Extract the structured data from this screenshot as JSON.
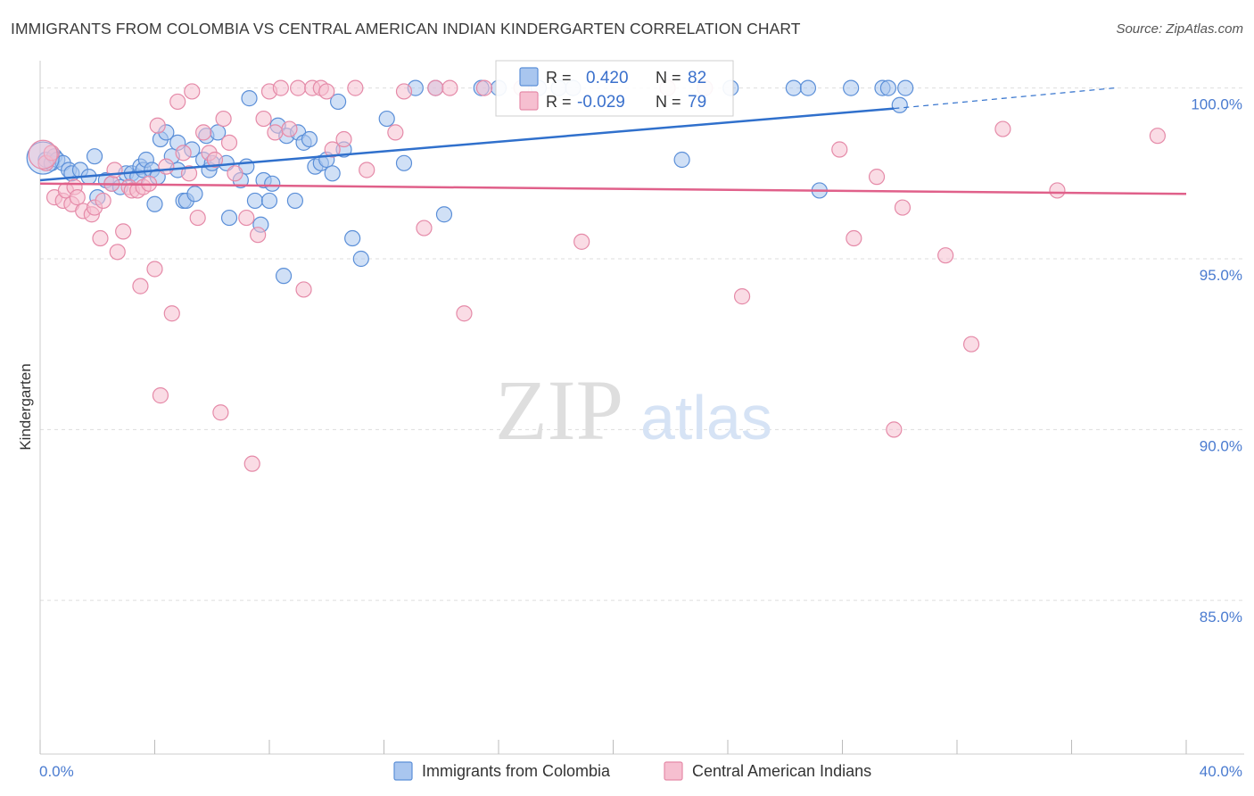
{
  "header": {
    "title": "IMMIGRANTS FROM COLOMBIA VS CENTRAL AMERICAN INDIAN KINDERGARTEN CORRELATION CHART",
    "source": "Source: ZipAtlas.com"
  },
  "watermark": {
    "zip": "ZIP",
    "atlas": "atlas"
  },
  "legend": {
    "r_label": "R =",
    "n_label": "N =",
    "series": [
      {
        "r": "0.420",
        "n": "82"
      },
      {
        "r": "-0.029",
        "n": "79"
      }
    ]
  },
  "colors": {
    "blue_fill": "#a9c6ef",
    "blue_stroke": "#5b8fd8",
    "blue_line": "#3070cc",
    "pink_fill": "#f6bfd0",
    "pink_stroke": "#e58aa8",
    "pink_line": "#e0608a",
    "grid": "#dddddd",
    "tick_text": "#4a7bd0"
  },
  "chart_data": {
    "type": "scatter",
    "title": "IMMIGRANTS FROM COLOMBIA VS CENTRAL AMERICAN INDIAN KINDERGARTEN CORRELATION CHART",
    "xlabel": "",
    "ylabel": "Kindergarten",
    "xlim": [
      0,
      40
    ],
    "ylim": [
      80.5,
      100.8
    ],
    "x_tick_labels": [
      "0.0%",
      "40.0%"
    ],
    "y_ticks": [
      85,
      90,
      95,
      100
    ],
    "y_tick_labels": [
      "85.0%",
      "90.0%",
      "95.0%",
      "100.0%"
    ],
    "series": [
      {
        "name": "Immigrants from Colombia",
        "r": 0.42,
        "n": 82,
        "trend": [
          [
            0,
            97.3
          ],
          [
            29.8,
            99.4
          ]
        ],
        "trend_dashed": [
          [
            29.8,
            99.4
          ],
          [
            37.5,
            100.0
          ]
        ],
        "points": [
          [
            0.2,
            97.9
          ],
          [
            0.4,
            97.8
          ],
          [
            0.5,
            98.0
          ],
          [
            0.6,
            97.9
          ],
          [
            0.8,
            97.8
          ],
          [
            1.0,
            97.6
          ],
          [
            1.1,
            97.5
          ],
          [
            1.4,
            97.6
          ],
          [
            1.7,
            97.4
          ],
          [
            1.9,
            98.0
          ],
          [
            2.0,
            96.8
          ],
          [
            2.3,
            97.3
          ],
          [
            2.5,
            97.2
          ],
          [
            2.8,
            97.1
          ],
          [
            3.0,
            97.5
          ],
          [
            3.2,
            97.5
          ],
          [
            3.4,
            97.4
          ],
          [
            3.5,
            97.7
          ],
          [
            3.6,
            97.6
          ],
          [
            3.7,
            97.9
          ],
          [
            3.9,
            97.6
          ],
          [
            4.0,
            96.6
          ],
          [
            4.1,
            97.4
          ],
          [
            4.2,
            98.5
          ],
          [
            4.4,
            98.7
          ],
          [
            4.6,
            98.0
          ],
          [
            4.8,
            98.4
          ],
          [
            4.8,
            97.6
          ],
          [
            5.0,
            96.7
          ],
          [
            5.1,
            96.7
          ],
          [
            5.3,
            98.2
          ],
          [
            5.4,
            96.9
          ],
          [
            5.7,
            97.9
          ],
          [
            5.8,
            98.6
          ],
          [
            5.9,
            97.6
          ],
          [
            6.0,
            97.8
          ],
          [
            6.2,
            98.7
          ],
          [
            6.5,
            97.8
          ],
          [
            6.6,
            96.2
          ],
          [
            7.0,
            97.3
          ],
          [
            7.2,
            97.7
          ],
          [
            7.3,
            99.7
          ],
          [
            7.5,
            96.7
          ],
          [
            7.7,
            96.0
          ],
          [
            7.8,
            97.3
          ],
          [
            8.0,
            96.7
          ],
          [
            8.1,
            97.2
          ],
          [
            8.3,
            98.9
          ],
          [
            8.5,
            94.5
          ],
          [
            8.6,
            98.6
          ],
          [
            8.9,
            96.7
          ],
          [
            9.0,
            98.7
          ],
          [
            9.2,
            98.4
          ],
          [
            9.4,
            98.5
          ],
          [
            9.6,
            97.7
          ],
          [
            9.8,
            97.8
          ],
          [
            10.0,
            97.9
          ],
          [
            10.2,
            97.5
          ],
          [
            10.4,
            99.6
          ],
          [
            10.6,
            98.2
          ],
          [
            10.9,
            95.6
          ],
          [
            11.2,
            95.0
          ],
          [
            12.1,
            99.1
          ],
          [
            12.7,
            97.8
          ],
          [
            13.1,
            100.0
          ],
          [
            13.8,
            100.0
          ],
          [
            14.1,
            96.3
          ],
          [
            15.4,
            100.0
          ],
          [
            16.0,
            100.0
          ],
          [
            17.4,
            100.0
          ],
          [
            18.1,
            100.0
          ],
          [
            18.6,
            100.0
          ],
          [
            22.4,
            97.9
          ],
          [
            24.1,
            100.0
          ],
          [
            26.3,
            100.0
          ],
          [
            26.8,
            100.0
          ],
          [
            27.2,
            97.0
          ],
          [
            28.3,
            100.0
          ],
          [
            29.4,
            100.0
          ],
          [
            29.6,
            100.0
          ],
          [
            30.0,
            99.5
          ],
          [
            30.2,
            100.0
          ]
        ]
      },
      {
        "name": "Central American Indians",
        "r": -0.029,
        "n": 79,
        "trend": [
          [
            0,
            97.2
          ],
          [
            40,
            96.9
          ]
        ],
        "points": [
          [
            0.2,
            97.8
          ],
          [
            0.5,
            96.8
          ],
          [
            0.8,
            96.7
          ],
          [
            0.9,
            97.0
          ],
          [
            1.1,
            96.6
          ],
          [
            1.2,
            97.1
          ],
          [
            1.3,
            96.8
          ],
          [
            1.5,
            96.4
          ],
          [
            1.8,
            96.3
          ],
          [
            1.9,
            96.5
          ],
          [
            2.1,
            95.6
          ],
          [
            2.2,
            96.7
          ],
          [
            2.5,
            97.2
          ],
          [
            2.6,
            97.6
          ],
          [
            2.7,
            95.2
          ],
          [
            2.9,
            95.8
          ],
          [
            3.1,
            97.1
          ],
          [
            3.2,
            97.0
          ],
          [
            3.4,
            97.0
          ],
          [
            3.5,
            94.2
          ],
          [
            3.6,
            97.1
          ],
          [
            3.8,
            97.2
          ],
          [
            4.0,
            94.7
          ],
          [
            4.1,
            98.9
          ],
          [
            4.2,
            91.0
          ],
          [
            4.4,
            97.7
          ],
          [
            4.6,
            93.4
          ],
          [
            4.8,
            99.6
          ],
          [
            5.0,
            98.1
          ],
          [
            5.2,
            97.5
          ],
          [
            5.3,
            99.9
          ],
          [
            5.5,
            96.2
          ],
          [
            5.7,
            98.7
          ],
          [
            5.9,
            98.1
          ],
          [
            6.1,
            97.9
          ],
          [
            6.3,
            90.5
          ],
          [
            6.4,
            99.1
          ],
          [
            6.6,
            98.4
          ],
          [
            6.8,
            97.5
          ],
          [
            7.2,
            96.2
          ],
          [
            7.4,
            89.0
          ],
          [
            7.6,
            95.7
          ],
          [
            7.8,
            99.1
          ],
          [
            8.0,
            99.9
          ],
          [
            8.2,
            98.7
          ],
          [
            8.4,
            100.0
          ],
          [
            8.7,
            98.8
          ],
          [
            9.0,
            100.0
          ],
          [
            9.2,
            94.1
          ],
          [
            9.5,
            100.0
          ],
          [
            9.8,
            100.0
          ],
          [
            10.0,
            99.9
          ],
          [
            10.2,
            98.2
          ],
          [
            10.6,
            98.5
          ],
          [
            11.0,
            100.0
          ],
          [
            11.4,
            97.6
          ],
          [
            12.4,
            98.7
          ],
          [
            12.7,
            99.9
          ],
          [
            13.4,
            95.9
          ],
          [
            13.8,
            100.0
          ],
          [
            14.3,
            100.0
          ],
          [
            14.8,
            93.4
          ],
          [
            15.5,
            100.0
          ],
          [
            16.8,
            100.0
          ],
          [
            18.9,
            95.5
          ],
          [
            21.9,
            100.0
          ],
          [
            23.2,
            100.0
          ],
          [
            24.5,
            93.9
          ],
          [
            27.9,
            98.2
          ],
          [
            28.4,
            95.6
          ],
          [
            29.2,
            97.4
          ],
          [
            29.8,
            90.0
          ],
          [
            30.1,
            96.5
          ],
          [
            31.6,
            95.1
          ],
          [
            32.5,
            92.5
          ],
          [
            33.6,
            98.8
          ],
          [
            35.5,
            97.0
          ],
          [
            39.0,
            98.6
          ],
          [
            0.4,
            98.1
          ]
        ]
      }
    ],
    "bottom_legend": [
      "Immigrants from Colombia",
      "Central American Indians"
    ]
  }
}
